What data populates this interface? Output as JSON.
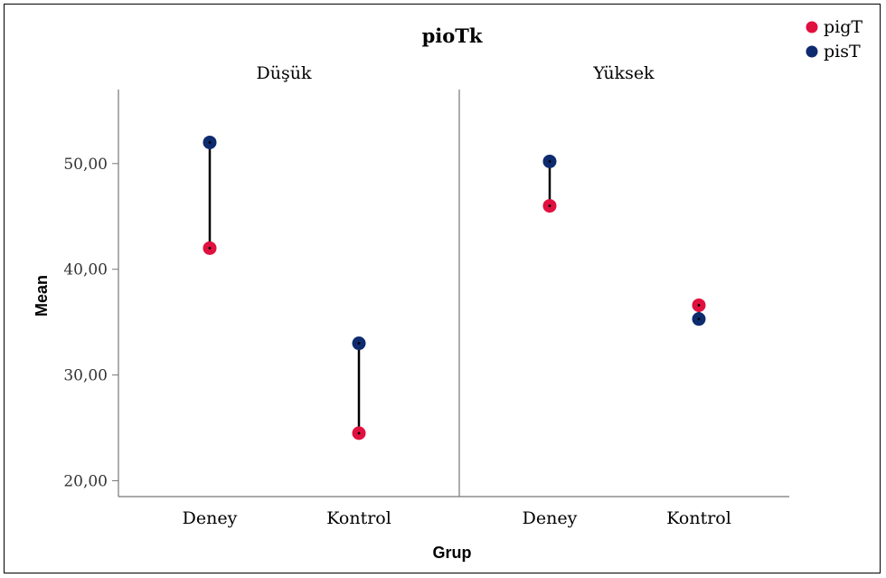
{
  "chart_data": {
    "type": "scatter",
    "title": "pioTk",
    "xlabel": "Grup",
    "ylabel": "Mean",
    "ylim": [
      18.5,
      57
    ],
    "yticks": [
      "20,00",
      "30,00",
      "40,00",
      "50,00"
    ],
    "ytick_values": [
      20,
      30,
      40,
      50
    ],
    "categories": [
      "Deney",
      "Kontrol"
    ],
    "panels": [
      {
        "label": "Düşük",
        "series": [
          {
            "name": "pigT",
            "values": [
              42.0,
              24.5
            ]
          },
          {
            "name": "pisT",
            "values": [
              52.0,
              33.0
            ]
          }
        ]
      },
      {
        "label": "Yüksek",
        "series": [
          {
            "name": "pigT",
            "values": [
              46.0,
              36.6
            ]
          },
          {
            "name": "pisT",
            "values": [
              50.2,
              35.3
            ]
          }
        ]
      }
    ],
    "legend": {
      "placement": "top-right",
      "entries": [
        {
          "name": "pigT",
          "color": "#e0103f"
        },
        {
          "name": "pisT",
          "color": "#0d2b6e"
        }
      ]
    },
    "colors": {
      "pigT": "#e0103f",
      "pisT": "#0d2b6e",
      "connector": "#000000",
      "axis": "#777777"
    },
    "grid": false
  }
}
